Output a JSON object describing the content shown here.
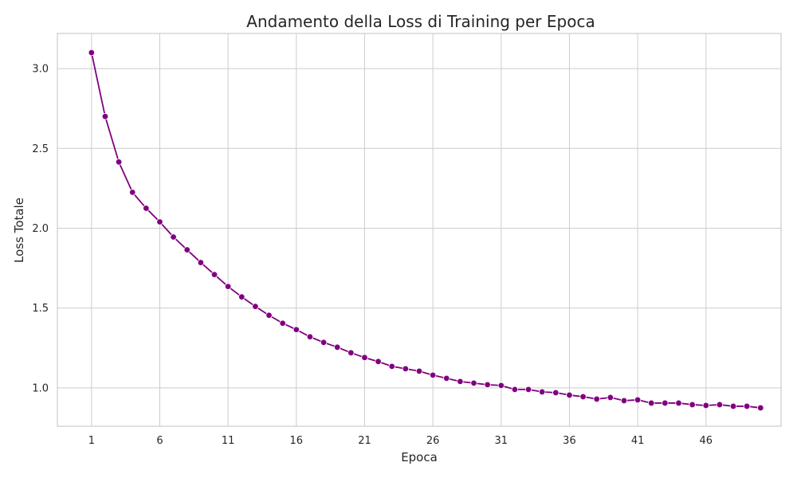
{
  "chart_data": {
    "type": "line",
    "title": "Andamento della Loss di Training per Epoca",
    "xlabel": "Epoca",
    "ylabel": "Loss Totale",
    "xlim": [
      -1.5,
      51.5
    ],
    "ylim": [
      0.76,
      3.22
    ],
    "x_ticks": [
      1,
      6,
      11,
      16,
      21,
      26,
      31,
      36,
      41,
      46
    ],
    "y_ticks": [
      1.0,
      1.5,
      2.0,
      2.5,
      3.0
    ],
    "y_tick_labels": [
      "1.0",
      "1.5",
      "2.0",
      "2.5",
      "3.0"
    ],
    "grid": true,
    "legend": "none",
    "series": [
      {
        "color": "#800080",
        "marker": "circle",
        "x": [
          1,
          2,
          3,
          4,
          5,
          6,
          7,
          8,
          9,
          10,
          11,
          12,
          13,
          14,
          15,
          16,
          17,
          18,
          19,
          20,
          21,
          22,
          23,
          24,
          25,
          26,
          27,
          28,
          29,
          30,
          31,
          32,
          33,
          34,
          35,
          36,
          37,
          38,
          39,
          40,
          41,
          42,
          43,
          44,
          45,
          46,
          47,
          48,
          49,
          50
        ],
        "values": [
          3.1,
          2.7,
          2.415,
          2.225,
          2.125,
          2.04,
          1.945,
          1.865,
          1.785,
          1.71,
          1.635,
          1.57,
          1.51,
          1.455,
          1.405,
          1.365,
          1.32,
          1.285,
          1.255,
          1.22,
          1.19,
          1.165,
          1.135,
          1.12,
          1.105,
          1.08,
          1.06,
          1.04,
          1.03,
          1.02,
          1.015,
          0.99,
          0.99,
          0.975,
          0.97,
          0.955,
          0.945,
          0.93,
          0.94,
          0.92,
          0.925,
          0.905,
          0.905,
          0.905,
          0.895,
          0.89,
          0.895,
          0.885,
          0.885,
          0.875
        ]
      }
    ]
  }
}
